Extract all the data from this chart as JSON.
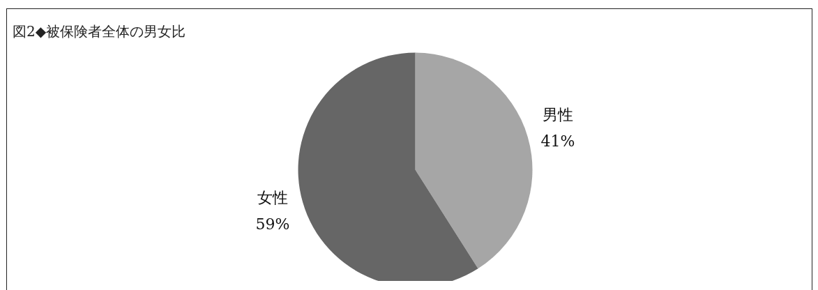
{
  "chart_data": {
    "type": "pie",
    "title": "図2◆被保険者全体の男女比",
    "categories": [
      "男性",
      "女性"
    ],
    "values": [
      41,
      59
    ],
    "colors": [
      "#a6a6a6",
      "#666666"
    ],
    "value_labels": [
      "41%",
      "59%"
    ]
  }
}
